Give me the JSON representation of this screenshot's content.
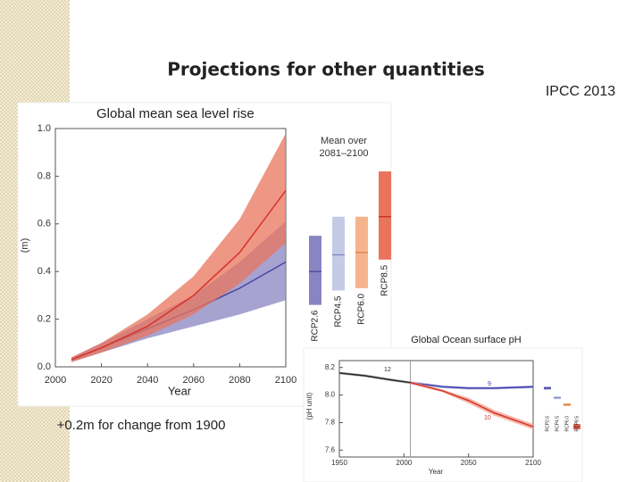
{
  "title": "Projections for other quantities",
  "source": "IPCC 2013",
  "note": "+0.2m for change from 1900",
  "chart_data": [
    {
      "type": "line",
      "title": "Global mean sea level rise",
      "ylabel": "(m)",
      "xlabel": "Year",
      "xlim": [
        2000,
        2100
      ],
      "xticks": [
        2000,
        2020,
        2040,
        2060,
        2080,
        2100
      ],
      "ylim": [
        0,
        1
      ],
      "yticks": [
        {
          "value": 0,
          "label": "0.0"
        },
        0.2,
        0.4,
        0.6,
        0.8,
        {
          "value": 1,
          "label": "1.0"
        }
      ],
      "x": [
        2007,
        2020,
        2040,
        2060,
        2080,
        2100
      ],
      "series": [
        {
          "color": "#4a44a0",
          "band_color": "#8984c2",
          "values": [
            0.03,
            0.08,
            0.16,
            0.24,
            0.33,
            0.44
          ],
          "lower": [
            0.02,
            0.06,
            0.12,
            0.17,
            0.22,
            0.28
          ],
          "upper": [
            0.04,
            0.1,
            0.2,
            0.3,
            0.44,
            0.61
          ]
        },
        {
          "color": "#d8322a",
          "band_color": "#e8745c",
          "values": [
            0.03,
            0.08,
            0.17,
            0.3,
            0.48,
            0.74
          ],
          "lower": [
            0.02,
            0.06,
            0.13,
            0.22,
            0.35,
            0.52
          ],
          "upper": [
            0.04,
            0.1,
            0.22,
            0.38,
            0.62,
            0.98
          ]
        }
      ],
      "ranges": {
        "title": [
          "Mean over",
          "2081–2100"
        ],
        "items": [
          {
            "name": "RCP2.6",
            "color": "#8984c2",
            "line_color": "#4a44a0",
            "low": 0.26,
            "mean": 0.4,
            "high": 0.55
          },
          {
            "name": "RCP4.5",
            "color": "#c5cbe6",
            "line_color": "#7a86c4",
            "low": 0.32,
            "mean": 0.47,
            "high": 0.63
          },
          {
            "name": "RCP6.0",
            "color": "#f5b48c",
            "line_color": "#e07a40",
            "low": 0.33,
            "mean": 0.48,
            "high": 0.63
          },
          {
            "name": "RCP8.5",
            "color": "#e8745c",
            "line_color": "#c2281e",
            "low": 0.45,
            "mean": 0.63,
            "high": 0.82
          }
        ]
      }
    },
    {
      "type": "line",
      "title": "Global Ocean surface pH",
      "ylabel": "(pH unit)",
      "xlabel": "Year",
      "xlim": [
        1950,
        2100
      ],
      "xticks": [
        1950,
        2000,
        2050,
        2100
      ],
      "ylim": [
        7.55,
        8.25
      ],
      "yticks": [
        7.6,
        7.8,
        {
          "value": 8,
          "label": "8.0"
        },
        8.2
      ],
      "marker_x": 2005,
      "series": [
        {
          "color": "#222222",
          "band_color": "#aaaaaa",
          "x": [
            1950,
            1970,
            1990,
            2005
          ],
          "values": [
            8.16,
            8.14,
            8.11,
            8.09
          ],
          "lower": [
            8.15,
            8.13,
            8.1,
            8.08
          ],
          "upper": [
            8.17,
            8.15,
            8.12,
            8.1
          ]
        },
        {
          "color": "#3c3cae",
          "band_color": "#a4a4d8",
          "x": [
            2005,
            2030,
            2050,
            2070,
            2100
          ],
          "values": [
            8.09,
            8.06,
            8.05,
            8.05,
            8.06
          ],
          "lower": [
            8.08,
            8.05,
            8.04,
            8.04,
            8.05
          ],
          "upper": [
            8.1,
            8.07,
            8.06,
            8.06,
            8.07
          ]
        },
        {
          "color": "#d8322a",
          "band_color": "#f0a08c",
          "x": [
            2005,
            2030,
            2050,
            2070,
            2100
          ],
          "values": [
            8.09,
            8.03,
            7.96,
            7.87,
            7.77
          ],
          "lower": [
            8.08,
            8.02,
            7.94,
            7.85,
            7.75
          ],
          "upper": [
            8.1,
            8.04,
            7.98,
            7.89,
            7.79
          ]
        }
      ],
      "annotations": [
        "12",
        "9",
        "10"
      ],
      "ranges": {
        "items": [
          {
            "name": "RCP2.6",
            "color": "#8984c2",
            "line_color": "#3c3cae",
            "low": 8.04,
            "mean": 8.05,
            "high": 8.06
          },
          {
            "name": "RCP4.5",
            "color": "#c5cbe6",
            "line_color": "#7a86c4",
            "low": 7.97,
            "mean": 7.98,
            "high": 7.99
          },
          {
            "name": "RCP6.0",
            "color": "#f5b48c",
            "line_color": "#e07a40",
            "low": 7.92,
            "mean": 7.93,
            "high": 7.94
          },
          {
            "name": "RCP8.5",
            "color": "#e8745c",
            "line_color": "#c2281e",
            "low": 7.75,
            "mean": 7.77,
            "high": 7.79
          }
        ]
      }
    }
  ]
}
